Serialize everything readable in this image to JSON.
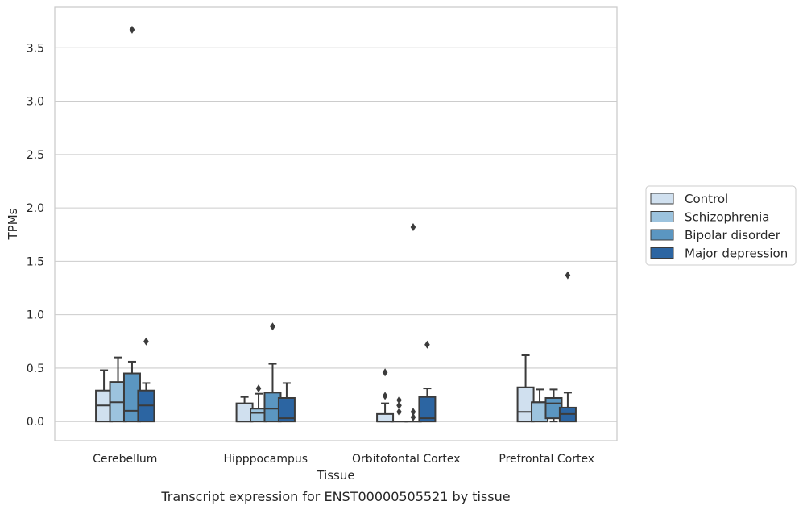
{
  "chart_data": {
    "type": "boxplot",
    "caption": "Transcript expression for ENST00000505521 by tissue",
    "xlabel": "Tissue",
    "ylabel": "TPMs",
    "ylim": [
      -0.18,
      3.88
    ],
    "yticks": [
      "0.0",
      "0.5",
      "1.0",
      "1.5",
      "2.0",
      "2.5",
      "3.0",
      "3.5"
    ],
    "grid": "horizontal",
    "legend_position": "right",
    "categories": [
      "Cerebellum",
      "Hipppocampus",
      "Orbitofontal Cortex",
      "Prefrontal Cortex"
    ],
    "series": [
      {
        "name": "Control",
        "color": "#d0e0ef",
        "boxes": [
          {
            "q1": 0.0,
            "median": 0.15,
            "q3": 0.29,
            "whisker_low": 0.0,
            "whisker_high": 0.48,
            "outliers": []
          },
          {
            "q1": 0.0,
            "median": 0.0,
            "q3": 0.17,
            "whisker_low": 0.0,
            "whisker_high": 0.23,
            "outliers": []
          },
          {
            "q1": 0.0,
            "median": 0.0,
            "q3": 0.07,
            "whisker_low": 0.0,
            "whisker_high": 0.17,
            "outliers": [
              0.24,
              0.46
            ]
          },
          {
            "q1": 0.0,
            "median": 0.09,
            "q3": 0.32,
            "whisker_low": 0.0,
            "whisker_high": 0.62,
            "outliers": []
          }
        ]
      },
      {
        "name": "Schizophrenia",
        "color": "#9cc3de",
        "boxes": [
          {
            "q1": 0.0,
            "median": 0.18,
            "q3": 0.37,
            "whisker_low": 0.0,
            "whisker_high": 0.6,
            "outliers": []
          },
          {
            "q1": 0.0,
            "median": 0.08,
            "q3": 0.12,
            "whisker_low": 0.0,
            "whisker_high": 0.26,
            "outliers": [
              0.31
            ]
          },
          {
            "q1": 0.0,
            "median": 0.0,
            "q3": 0.0,
            "whisker_low": 0.0,
            "whisker_high": 0.0,
            "outliers": [
              0.09,
              0.15,
              0.2
            ]
          },
          {
            "q1": 0.0,
            "median": 0.18,
            "q3": 0.18,
            "whisker_low": 0.0,
            "whisker_high": 0.3,
            "outliers": []
          }
        ]
      },
      {
        "name": "Bipolar disorder",
        "color": "#5b96c1",
        "boxes": [
          {
            "q1": 0.0,
            "median": 0.1,
            "q3": 0.45,
            "whisker_low": 0.0,
            "whisker_high": 0.56,
            "outliers": [
              3.67
            ]
          },
          {
            "q1": 0.0,
            "median": 0.12,
            "q3": 0.27,
            "whisker_low": 0.0,
            "whisker_high": 0.54,
            "outliers": [
              0.89
            ]
          },
          {
            "q1": 0.0,
            "median": 0.0,
            "q3": 0.0,
            "whisker_low": 0.0,
            "whisker_high": 0.0,
            "outliers": [
              0.04,
              0.09,
              1.82
            ]
          },
          {
            "q1": 0.03,
            "median": 0.17,
            "q3": 0.22,
            "whisker_low": 0.0,
            "whisker_high": 0.3,
            "outliers": []
          }
        ]
      },
      {
        "name": "Major depression",
        "color": "#2c65a2",
        "boxes": [
          {
            "q1": 0.0,
            "median": 0.15,
            "q3": 0.29,
            "whisker_low": 0.0,
            "whisker_high": 0.36,
            "outliers": [
              0.75
            ]
          },
          {
            "q1": 0.0,
            "median": 0.03,
            "q3": 0.22,
            "whisker_low": 0.0,
            "whisker_high": 0.36,
            "outliers": []
          },
          {
            "q1": 0.0,
            "median": 0.03,
            "q3": 0.23,
            "whisker_low": 0.0,
            "whisker_high": 0.31,
            "outliers": [
              0.72
            ]
          },
          {
            "q1": 0.0,
            "median": 0.07,
            "q3": 0.13,
            "whisker_low": 0.0,
            "whisker_high": 0.27,
            "outliers": [
              1.37
            ]
          }
        ]
      }
    ]
  }
}
